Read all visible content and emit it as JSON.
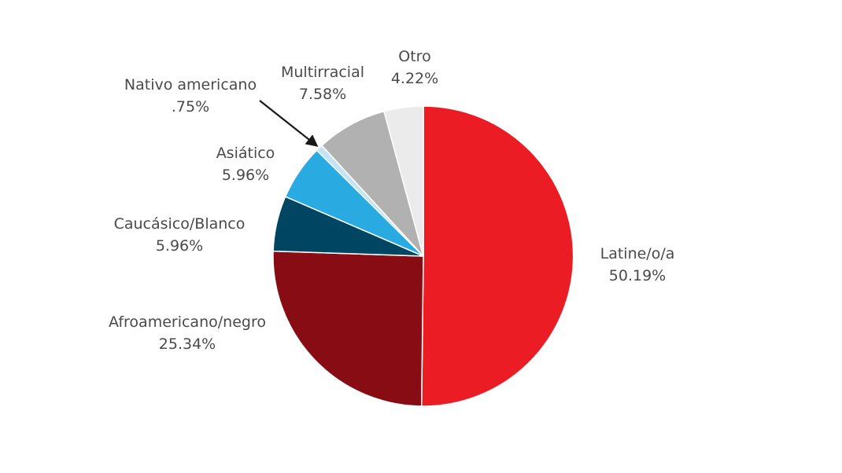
{
  "chart_data": {
    "type": "pie",
    "start": "12 o'clock",
    "direction": "clockwise",
    "slices": [
      {
        "name": "Latine/o/a",
        "value": 50.19,
        "label": "50.19%",
        "color": "#ec1c24"
      },
      {
        "name": "Afroamericano/negro",
        "value": 25.34,
        "label": "25.34%",
        "color": "#870c14"
      },
      {
        "name": "Caucásico/Blanco",
        "value": 5.96,
        "label": "5.96%",
        "color": "#004663"
      },
      {
        "name": "Asiático",
        "value": 5.96,
        "label": "5.96%",
        "color": "#29abe2"
      },
      {
        "name": "Nativo americano",
        "value": 0.75,
        "label": ".75%",
        "color": "#c4e3f3"
      },
      {
        "name": "Multirracial",
        "value": 7.58,
        "label": "7.58%",
        "color": "#b1b1b1"
      },
      {
        "name": "Otro",
        "value": 4.22,
        "label": "4.22%",
        "color": "#ebebeb"
      }
    ],
    "arrow": {
      "from": "Nativo americano",
      "color": "#1a1a1a"
    }
  }
}
